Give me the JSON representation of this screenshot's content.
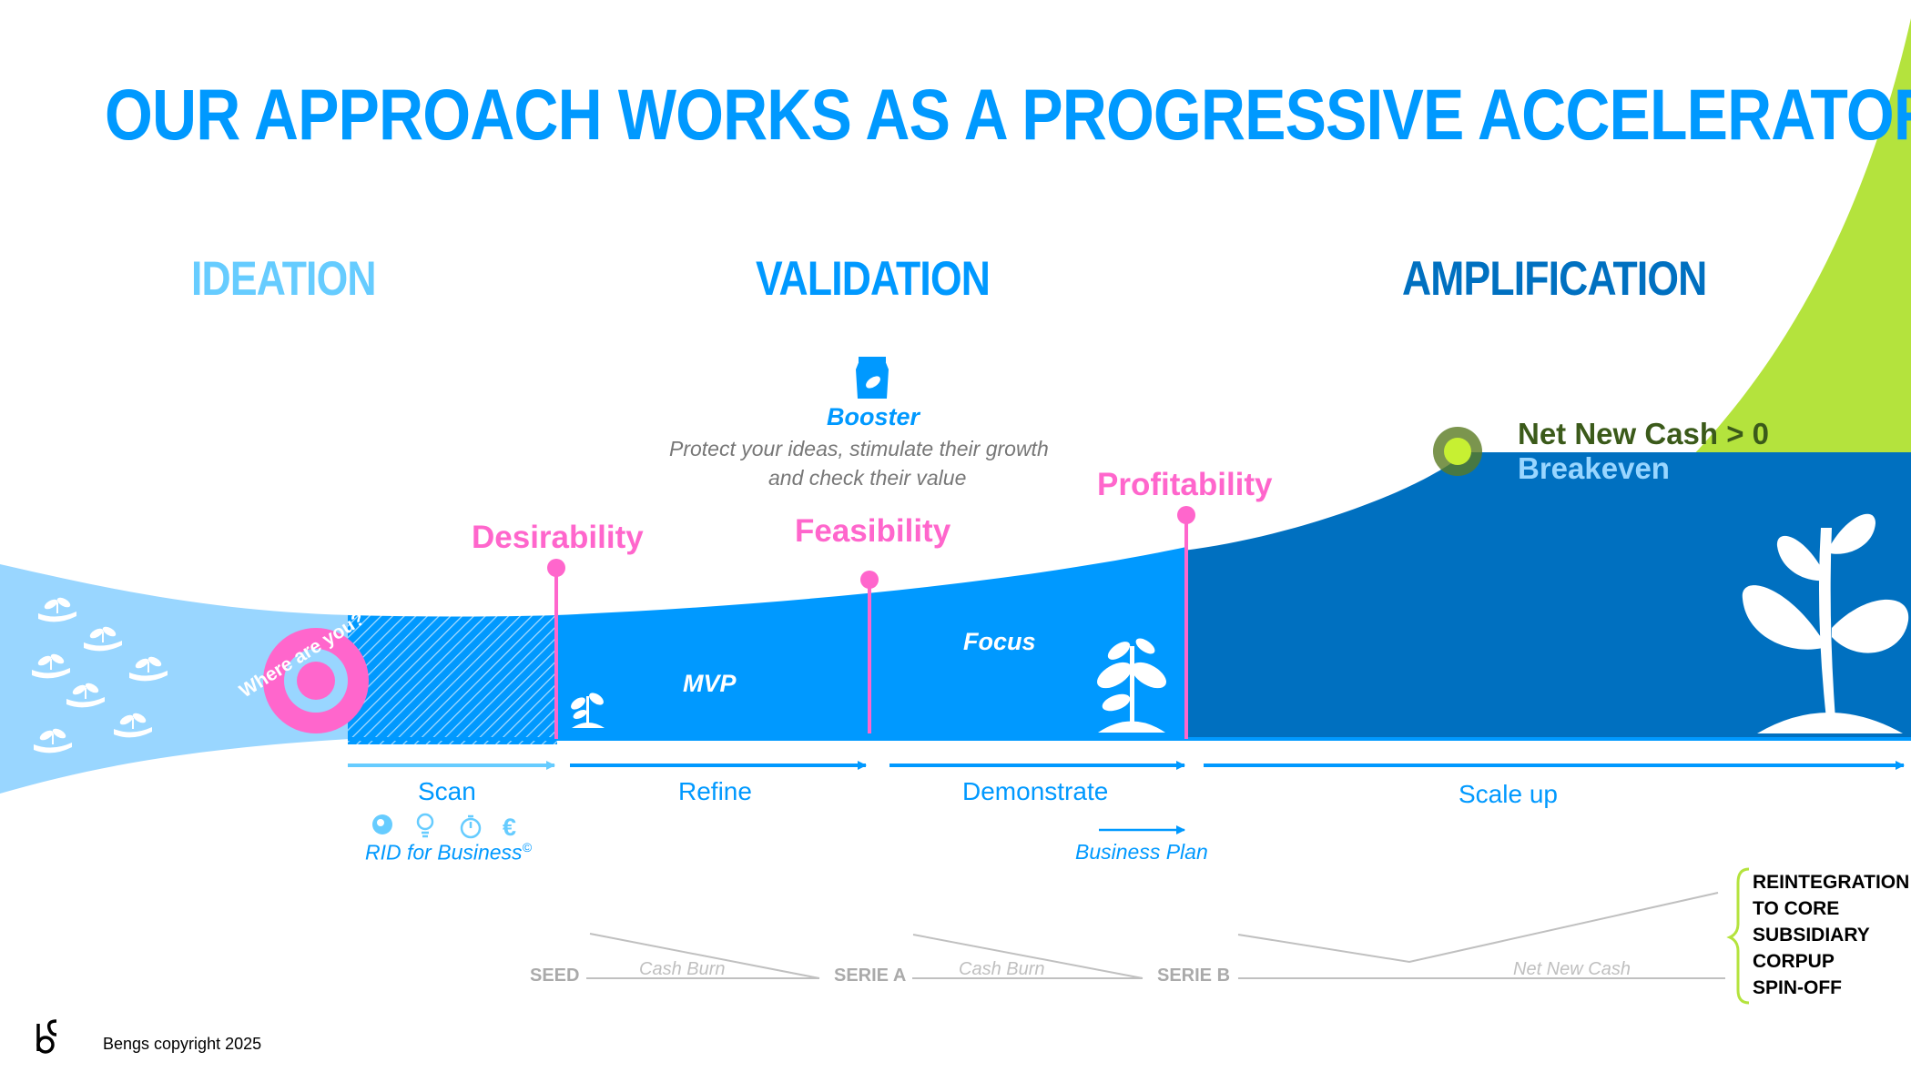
{
  "title": "OUR APPROACH WORKS AS A PROGRESSIVE ACCELERATOR",
  "phases": {
    "ideation": "IDEATION",
    "validation": "VALIDATION",
    "amplification": "AMPLIFICATION"
  },
  "booster": {
    "title": "Booster",
    "line1": "Protect your ideas, stimulate their growth",
    "line2": "and check their value"
  },
  "milestones": {
    "desirability": "Desirability",
    "feasibility": "Feasibility",
    "profitability": "Profitability"
  },
  "breakeven": {
    "net_new_cash": "Net New Cash > 0",
    "label": "Breakeven"
  },
  "where_are_you": "Where are you?",
  "inside": {
    "mvp": "MVP",
    "focus": "Focus"
  },
  "steps": {
    "scan": "Scan",
    "refine": "Refine",
    "demonstrate": "Demonstrate",
    "scale_up": "Scale up"
  },
  "rid": {
    "text": "RID for Business",
    "mark": "©"
  },
  "business_plan": "Business Plan",
  "funding": {
    "seed": "SEED",
    "serie_a": "SERIE A",
    "serie_b": "SERIE B",
    "cash_burn_1": "Cash Burn",
    "cash_burn_2": "Cash Burn",
    "net_new_cash": "Net New Cash"
  },
  "exits": [
    "REINTEGRATION",
    "TO CORE",
    "SUBSIDIARY",
    "CORPUP",
    "SPIN-OFF"
  ],
  "footer": {
    "logo": "bS",
    "copyright": "Bengs copyright 2025"
  },
  "icons": [
    "plant-hand-icon",
    "target-icon",
    "sprout-icon",
    "plant-icon",
    "big-plant-icon",
    "seed-bag-icon",
    "brain-icon",
    "bulb-icon",
    "timer-icon",
    "euro-icon"
  ],
  "colors": {
    "title": "#0099ff",
    "ideation": "#66ccff",
    "validation": "#0099ff",
    "amplification": "#0070c0",
    "milestone": "#ff66cc",
    "growth": "#b4e33d",
    "dark_green": "#3b5a1a"
  }
}
